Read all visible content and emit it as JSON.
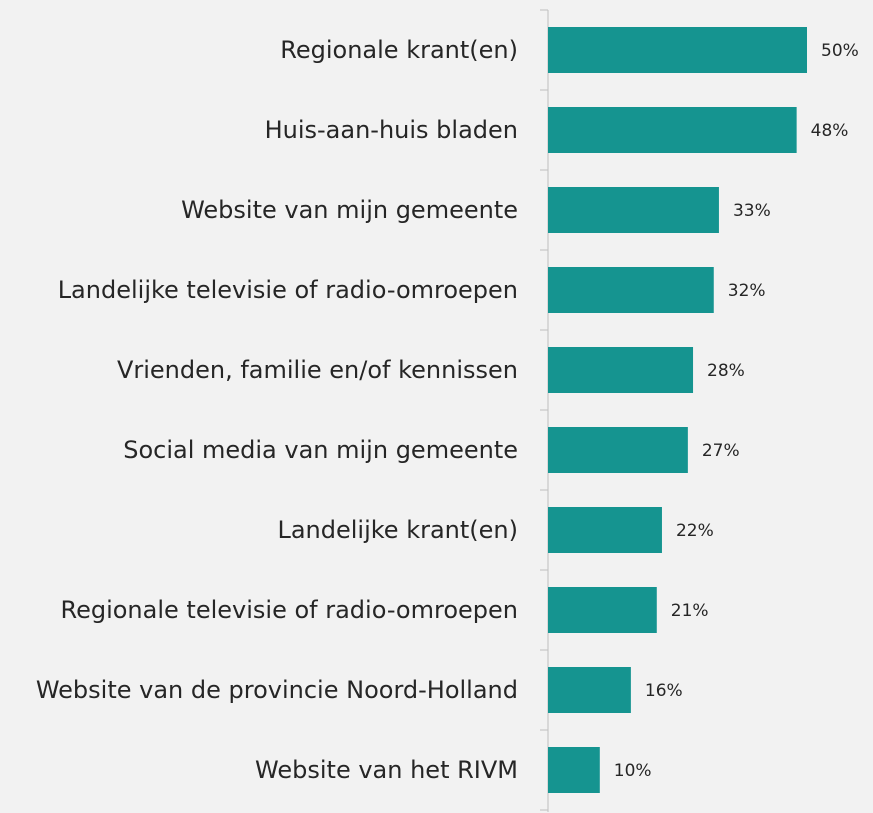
{
  "chart_data": {
    "type": "bar",
    "orientation": "horizontal",
    "categories": [
      "Regionale krant(en)",
      "Huis-aan-huis bladen",
      "Website van mijn gemeente",
      "Landelijke televisie of radio-omroepen",
      "Vrienden, familie en/of kennissen",
      "Social media van mijn gemeente",
      "Landelijke krant(en)",
      "Regionale televisie of radio-omroepen",
      "Website van de provincie Noord-Holland",
      "Website van het RIVM"
    ],
    "values": [
      50,
      48,
      33,
      32,
      28,
      27,
      22,
      21,
      16,
      10
    ],
    "value_labels": [
      "50%",
      "48%",
      "33%",
      "32%",
      "28%",
      "27%",
      "22%",
      "21%",
      "16%",
      "10%"
    ],
    "color": "#159490"
  }
}
